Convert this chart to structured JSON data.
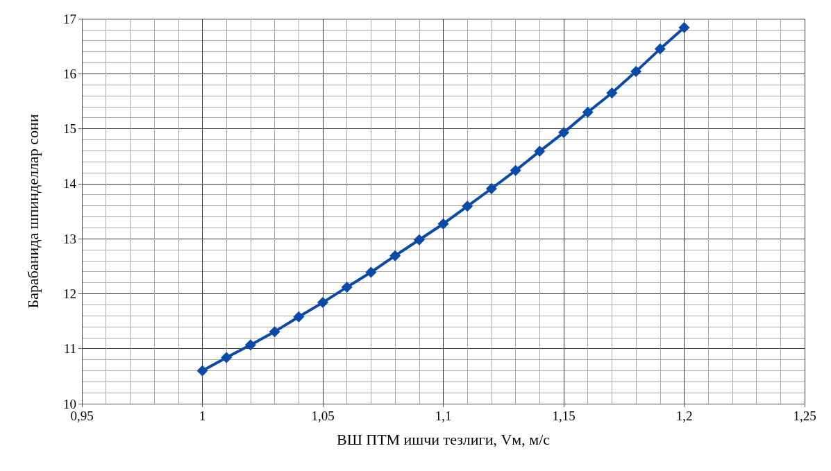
{
  "chart_data": {
    "type": "line",
    "xlabel": "ВШ ПТМ ишчи тезлиги, Vм, м/с",
    "ylabel": "Барабанида шпинделлар сони",
    "x": [
      1,
      1.01,
      1.02,
      1.03,
      1.04,
      1.05,
      1.06,
      1.07,
      1.08,
      1.09,
      1.1,
      1.11,
      1.12,
      1.13,
      1.14,
      1.15,
      1.16,
      1.17,
      1.18,
      1.19,
      1.2
    ],
    "series": [
      {
        "color": "#0a4aa8",
        "values": [
          10.6,
          10.84,
          11.07,
          11.31,
          11.58,
          11.84,
          12.12,
          12.39,
          12.69,
          12.98,
          13.27,
          13.59,
          13.91,
          14.24,
          14.59,
          14.93,
          15.3,
          15.65,
          16.04,
          16.45,
          16.84
        ]
      }
    ],
    "xlim": [
      0.95,
      1.25
    ],
    "xticks": [
      {
        "value": 0.95,
        "label": "0,95"
      },
      1,
      {
        "value": 1.05,
        "label": "1,05"
      },
      {
        "value": 1.1,
        "label": "1,1"
      },
      {
        "value": 1.15,
        "label": "1,15"
      },
      {
        "value": 1.2,
        "label": "1,2"
      },
      {
        "value": 1.25,
        "label": "1,25"
      }
    ],
    "ylim": [
      10,
      17
    ],
    "yticks": [
      10,
      11,
      12,
      13,
      14,
      15,
      16,
      17
    ],
    "grid": true,
    "marker": "diamond",
    "line_style": "solid"
  }
}
